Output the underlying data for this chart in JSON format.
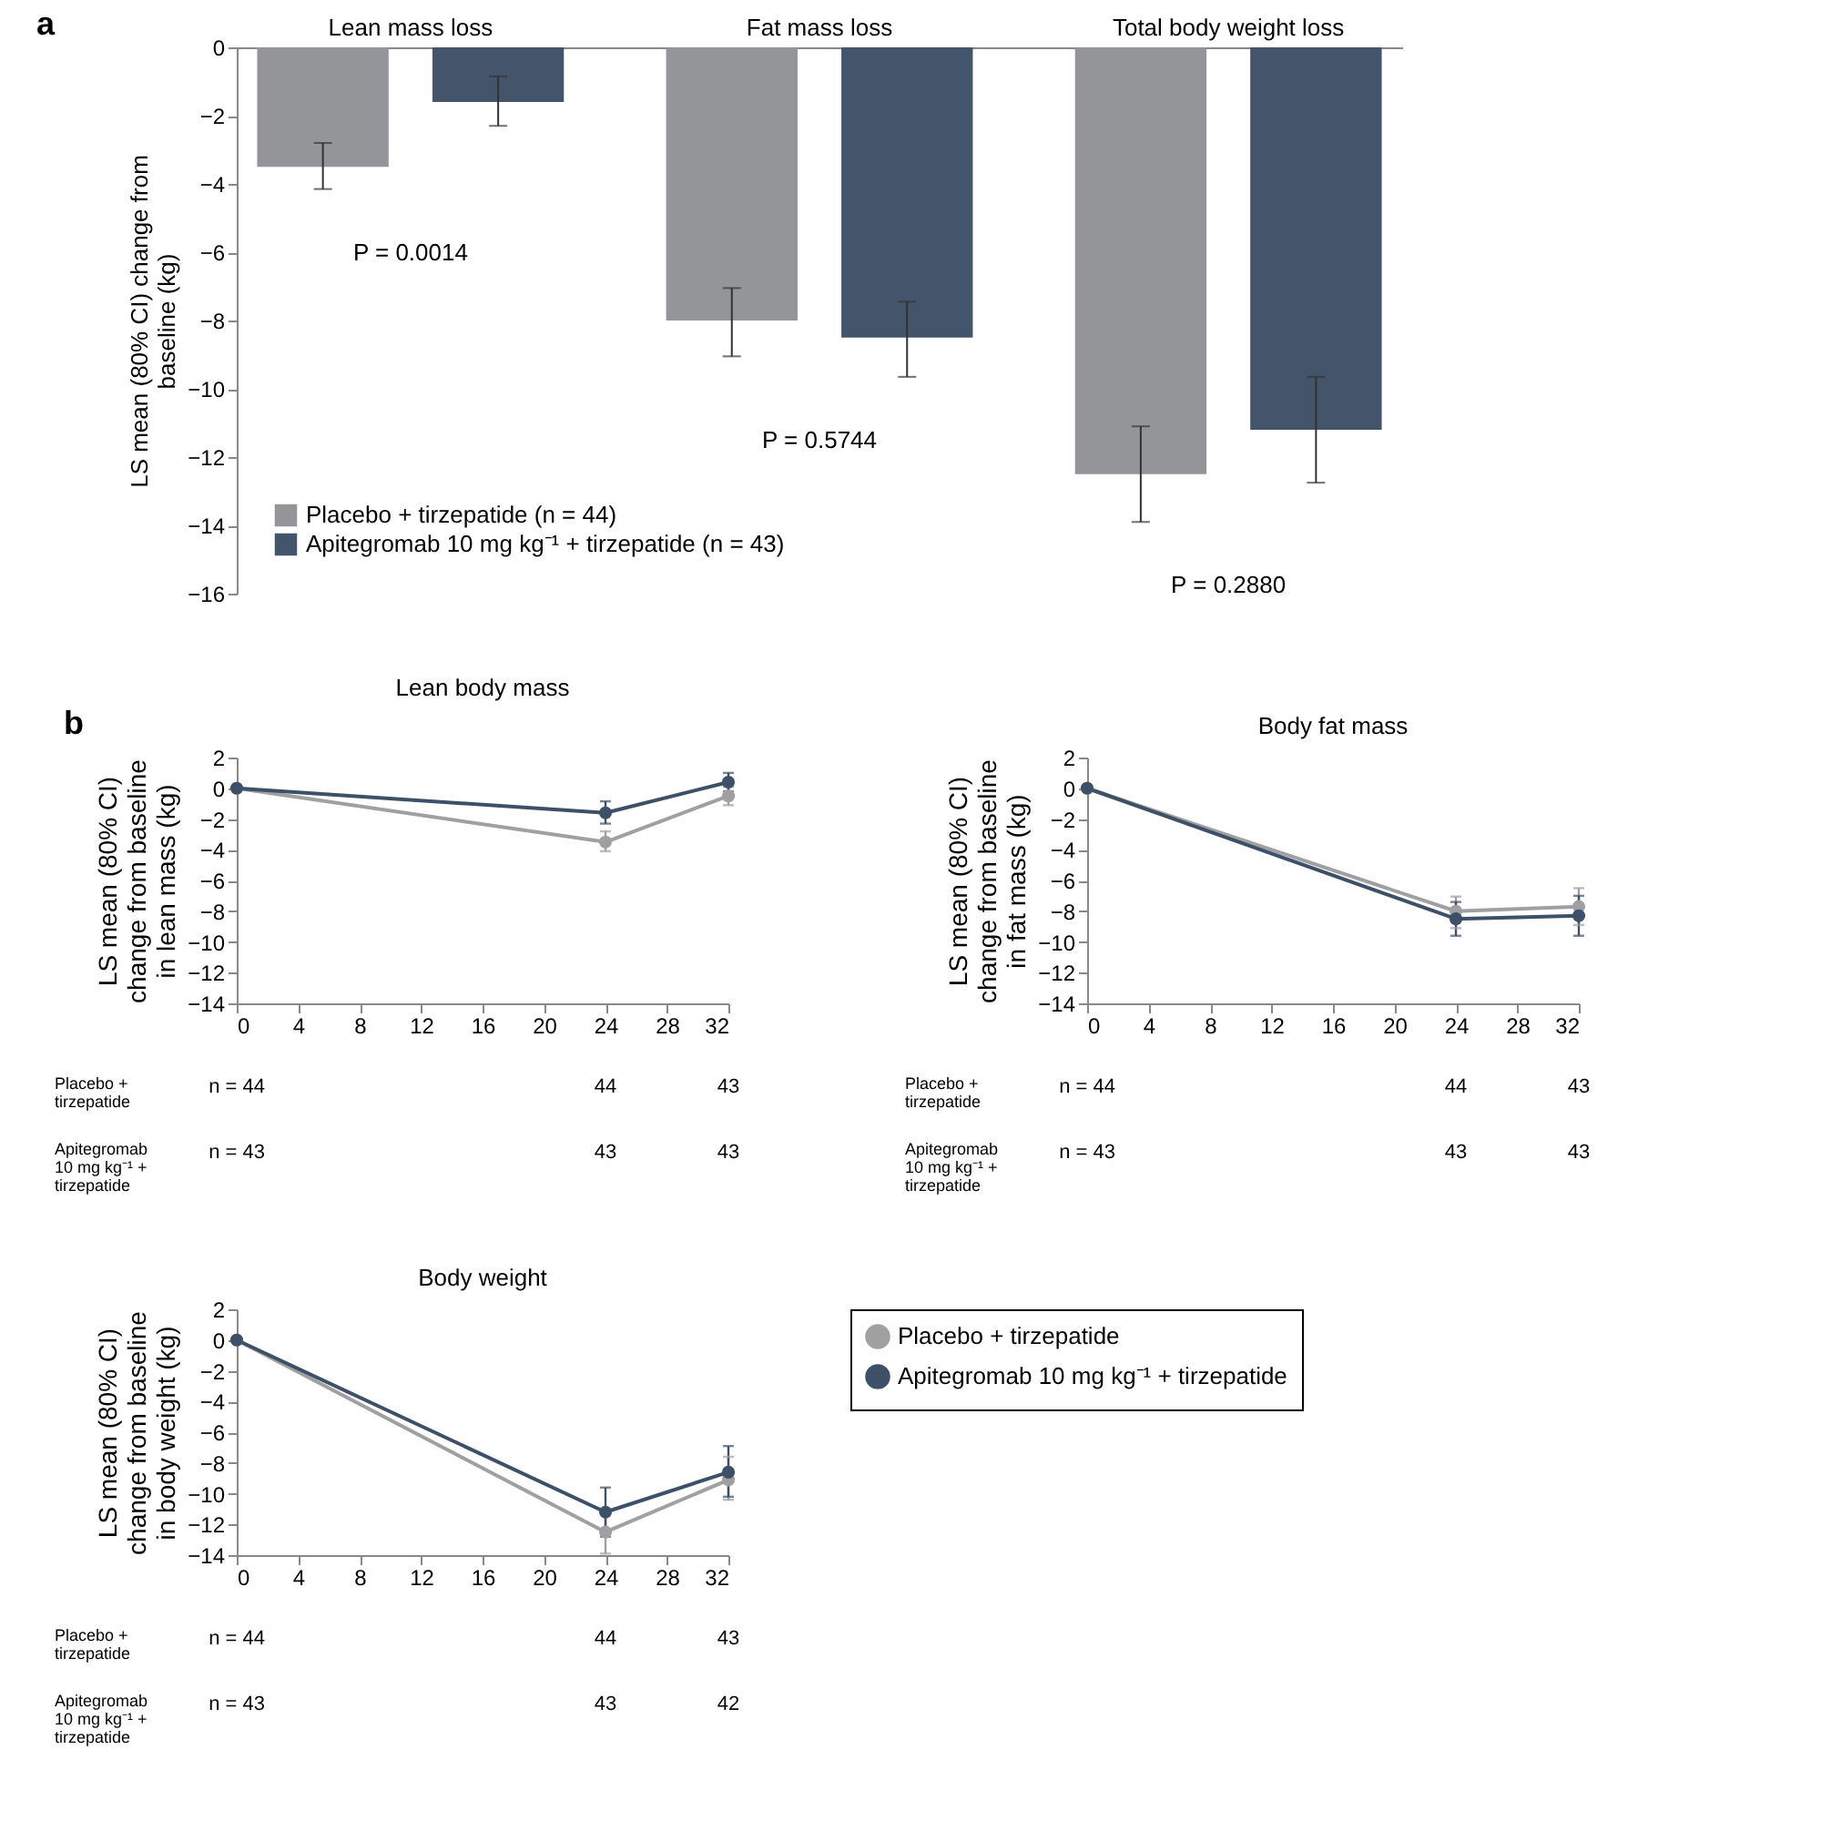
{
  "chart_data": [
    {
      "type": "bar",
      "categories": [
        "Lean mass loss",
        "Fat mass loss",
        "Total body weight loss"
      ],
      "ylabel": "LS mean (80% CI) change from baseline (kg)",
      "ylim": [
        -16,
        0
      ],
      "yticks": [
        0,
        -2,
        -4,
        -6,
        -8,
        -10,
        -12,
        -14,
        -16
      ],
      "legend": "bottom left",
      "grid": false,
      "series": [
        {
          "name": "Placebo + tirzepatide (n = 44)",
          "color": "#939598",
          "values": [
            -3.5,
            -8.0,
            -12.5
          ],
          "errors": [
            [
              -4.15,
              -2.8
            ],
            [
              -9.05,
              -7.05
            ],
            [
              -13.9,
              -11.1
            ]
          ]
        },
        {
          "name": "Apitegromab 10 mg kg⁻¹ + tirzepatide (n = 43)",
          "color": "#44546a",
          "values": [
            -1.6,
            -8.5,
            -11.2
          ],
          "errors": [
            [
              -2.3,
              -0.85
            ],
            [
              -9.65,
              -7.45
            ],
            [
              -12.75,
              -9.65
            ]
          ]
        }
      ],
      "annotations": [
        "a",
        "P = 0.0014",
        "P = 0.5744",
        "P = 0.2880"
      ]
    },
    {
      "type": "line",
      "title": "Lean body mass",
      "ylabel": "LS mean (80% CI) change from baseline in lean mass (kg)",
      "x": [
        0,
        24,
        32
      ],
      "xlim": [
        0,
        32
      ],
      "xticks": [
        0,
        4,
        8,
        12,
        16,
        20,
        24,
        28,
        32
      ],
      "ylim": [
        -14,
        2
      ],
      "yticks": [
        2,
        0,
        -2,
        -4,
        -6,
        -8,
        -10,
        -12,
        -14
      ],
      "marker": "circle",
      "grid": false,
      "series": [
        {
          "color": "#a0a0a2",
          "values": [
            0,
            -3.5,
            -0.5
          ],
          "errors": [
            null,
            [
              -4.1,
              -2.8
            ],
            [
              -1.1,
              0.1
            ]
          ]
        },
        {
          "color": "#3d5068",
          "values": [
            0,
            -1.6,
            0.4
          ],
          "errors": [
            null,
            [
              -2.3,
              -0.85
            ],
            [
              -0.2,
              1.0
            ]
          ]
        }
      ],
      "annotations": [
        "b",
        "Placebo + tirzepatide",
        "n = 44",
        "44",
        "43",
        "Apitegromab 10 mg kg⁻¹ + tirzepatide",
        "n = 43",
        "43",
        "43"
      ]
    },
    {
      "type": "line",
      "title": "Body fat mass",
      "ylabel": "LS mean (80% CI) change from baseline in fat mass (kg)",
      "x": [
        0,
        24,
        32
      ],
      "xlim": [
        0,
        32
      ],
      "xticks": [
        0,
        4,
        8,
        12,
        16,
        20,
        24,
        28,
        32
      ],
      "ylim": [
        -14,
        2
      ],
      "yticks": [
        2,
        0,
        -2,
        -4,
        -6,
        -8,
        -10,
        -12,
        -14
      ],
      "marker": "circle",
      "grid": false,
      "series": [
        {
          "color": "#a0a0a2",
          "values": [
            0,
            -8.0,
            -7.7
          ],
          "errors": [
            null,
            [
              -9.1,
              -7.05
            ],
            [
              -8.9,
              -6.5
            ]
          ]
        },
        {
          "color": "#3d5068",
          "values": [
            0,
            -8.5,
            -8.3
          ],
          "errors": [
            null,
            [
              -9.6,
              -7.4
            ],
            [
              -9.6,
              -7.0
            ]
          ]
        }
      ],
      "annotations": [
        "Placebo + tirzepatide",
        "n = 44",
        "44",
        "43",
        "Apitegromab 10 mg kg⁻¹ + tirzepatide",
        "n = 43",
        "43",
        "43"
      ]
    },
    {
      "type": "line",
      "title": "Body weight",
      "ylabel": "LS mean (80% CI) change from baseline in body weight (kg)",
      "x": [
        0,
        24,
        32
      ],
      "xlim": [
        0,
        32
      ],
      "xticks": [
        0,
        4,
        8,
        12,
        16,
        20,
        24,
        28,
        32
      ],
      "ylim": [
        -14,
        2
      ],
      "yticks": [
        2,
        0,
        -2,
        -4,
        -6,
        -8,
        -10,
        -12,
        -14
      ],
      "marker": "circle",
      "grid": false,
      "legend": "right",
      "series": [
        {
          "name": "Placebo + tirzepatide",
          "color": "#a0a0a2",
          "values": [
            0,
            -12.5,
            -9.1
          ],
          "errors": [
            null,
            [
              -13.9,
              -11.1
            ],
            [
              -10.4,
              -7.6
            ]
          ]
        },
        {
          "name": "Apitegromab 10 mg kg⁻¹ + tirzepatide",
          "color": "#3d5068",
          "values": [
            0,
            -11.2,
            -8.6
          ],
          "errors": [
            null,
            [
              -12.8,
              -9.6
            ],
            [
              -10.2,
              -6.9
            ]
          ]
        }
      ],
      "annotations": [
        "Placebo + tirzepatide",
        "n = 44",
        "44",
        "43",
        "Apitegromab 10 mg kg⁻¹ + tirzepatide",
        "n = 43",
        "43",
        "42"
      ]
    }
  ]
}
